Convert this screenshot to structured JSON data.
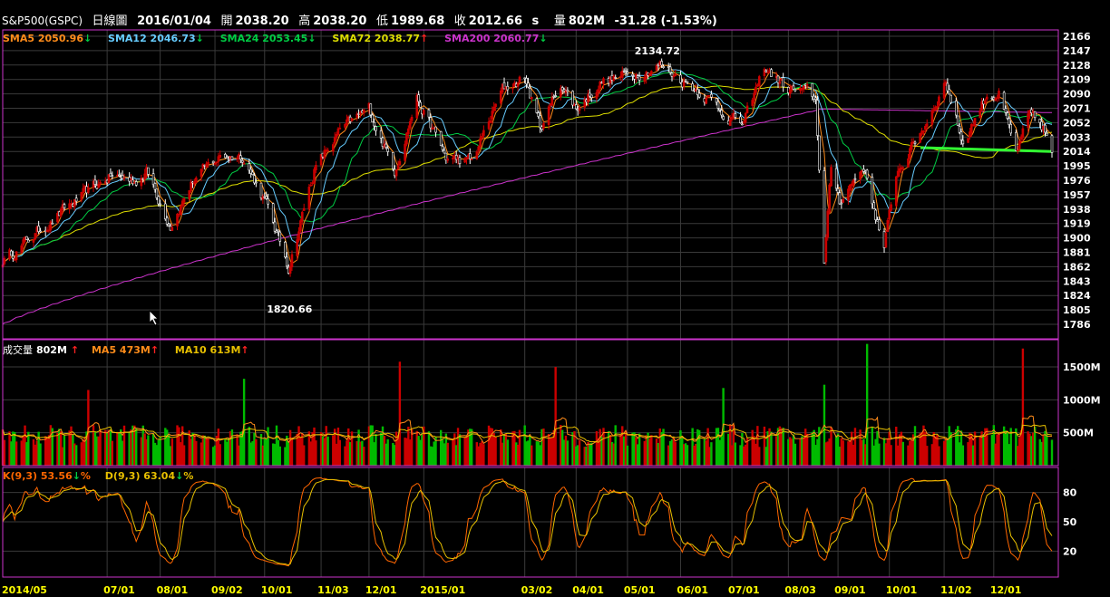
{
  "header": {
    "symbol": "S&P500(GSPC)",
    "period": "日線圖",
    "date": "2016/01/04",
    "open_label": "開",
    "open": "2038.20",
    "high_label": "高",
    "high": "2038.20",
    "low_label": "低",
    "low": "1989.68",
    "close_label": "收",
    "close": "2012.66",
    "close_suffix": "s",
    "volume_label": "量",
    "volume": "802M",
    "change": "-31.28 (-1.53%)"
  },
  "price_legend": {
    "sma5": "SMA5 2050.96",
    "sma12": "SMA12 2046.73",
    "sma24": "SMA24 2053.45",
    "sma72": "SMA72 2038.77",
    "sma200": "SMA200 2060.77",
    "arrow_down": "↓",
    "arrow_up": "↑"
  },
  "volume_legend": {
    "label": "成交量",
    "value": "802M",
    "ma5": "MA5 473M",
    "ma10": "MA10 613M",
    "arrow_up": "↑"
  },
  "kd_legend": {
    "k": "K(9,3) 53.56",
    "d": "D(9,3) 63.04",
    "pct": "%",
    "arrow_down": "↓"
  },
  "colors": {
    "up": "#cc0000",
    "down": "#00bb00",
    "sma5": "#ff8c1a",
    "sma12": "#66ccff",
    "sma24": "#00cc44",
    "sma72": "#dddd00",
    "sma200": "#cc33cc",
    "k_line": "#ff6600",
    "d_line": "#e8c000",
    "axis_text": "#ffffff",
    "date_text": "#ffff00"
  },
  "chart_data": [
    {
      "type": "candlestick",
      "title": "S&P500(GSPC) 日線圖",
      "x_range": [
        "2014/05",
        "2016/01/04"
      ],
      "ylim": [
        1786,
        2166
      ],
      "y_ticks": [
        1786,
        1805,
        1824,
        1843,
        1862,
        1881,
        1900,
        1919,
        1938,
        1957,
        1976,
        1995,
        2014,
        2033,
        2052,
        2071,
        2090,
        2109,
        2128,
        2147,
        2166
      ],
      "x_ticks": [
        "2014/05",
        "07/01",
        "08/01",
        "09/02",
        "10/01",
        "11/03",
        "12/01",
        "2015/01",
        "03/02",
        "04/01",
        "05/01",
        "06/01",
        "07/01",
        "08/03",
        "09/01",
        "10/01",
        "11/02",
        "12/01"
      ],
      "annotations": [
        "2134.72",
        "1820.66"
      ],
      "close_path": [
        {
          "x": "2014/05",
          "y": 1870
        },
        {
          "x": "2014/05/20",
          "y": 1905
        },
        {
          "x": "2014/06/05",
          "y": 1935
        },
        {
          "x": "2014/06/20",
          "y": 1960
        },
        {
          "x": "2014/07/03",
          "y": 1982
        },
        {
          "x": "2014/07/17",
          "y": 1975
        },
        {
          "x": "2014/07/24",
          "y": 1988
        },
        {
          "x": "2014/08/07",
          "y": 1918
        },
        {
          "x": "2014/08/20",
          "y": 1975
        },
        {
          "x": "2014/09/05",
          "y": 2007
        },
        {
          "x": "2014/09/18",
          "y": 2010
        },
        {
          "x": "2014/10/01",
          "y": 1950
        },
        {
          "x": "2014/10/15",
          "y": 1862
        },
        {
          "x": "2014/10/30",
          "y": 1990
        },
        {
          "x": "2014/11/14",
          "y": 2040
        },
        {
          "x": "2014/12/01",
          "y": 2070
        },
        {
          "x": "2014/12/16",
          "y": 1990
        },
        {
          "x": "2014/12/29",
          "y": 2085
        },
        {
          "x": "2015/01/15",
          "y": 2005
        },
        {
          "x": "2015/01/30",
          "y": 2000
        },
        {
          "x": "2015/02/17",
          "y": 2095
        },
        {
          "x": "2015/03/02",
          "y": 2112
        },
        {
          "x": "2015/03/11",
          "y": 2045
        },
        {
          "x": "2015/03/23",
          "y": 2105
        },
        {
          "x": "2015/04/01",
          "y": 2070
        },
        {
          "x": "2015/04/15",
          "y": 2105
        },
        {
          "x": "2015/05/01",
          "y": 2115
        },
        {
          "x": "2015/05/20",
          "y": 2128
        },
        {
          "x": "2015/06/01",
          "y": 2110
        },
        {
          "x": "2015/06/15",
          "y": 2090
        },
        {
          "x": "2015/06/29",
          "y": 2060
        },
        {
          "x": "2015/07/08",
          "y": 2050
        },
        {
          "x": "2015/07/20",
          "y": 2125
        },
        {
          "x": "2015/08/03",
          "y": 2095
        },
        {
          "x": "2015/08/14",
          "y": 2092
        },
        {
          "x": "2015/08/19",
          "y": 2080
        },
        {
          "x": "2015/08/24",
          "y": 1870
        },
        {
          "x": "2015/08/28",
          "y": 1990
        },
        {
          "x": "2015/09/02",
          "y": 1950
        },
        {
          "x": "2015/09/16",
          "y": 1995
        },
        {
          "x": "2015/09/28",
          "y": 1885
        },
        {
          "x": "2015/10/05",
          "y": 1985
        },
        {
          "x": "2015/10/22",
          "y": 2050
        },
        {
          "x": "2015/11/03",
          "y": 2108
        },
        {
          "x": "2015/11/13",
          "y": 2025
        },
        {
          "x": "2015/11/27",
          "y": 2090
        },
        {
          "x": "2015/12/04",
          "y": 2090
        },
        {
          "x": "2015/12/14",
          "y": 2010
        },
        {
          "x": "2015/12/22",
          "y": 2060
        },
        {
          "x": "2015/12/30",
          "y": 2045
        },
        {
          "x": "2016/01/04",
          "y": 2012.66
        }
      ],
      "series": [
        {
          "name": "SMA5",
          "last": 2050.96
        },
        {
          "name": "SMA12",
          "last": 2046.73
        },
        {
          "name": "SMA24",
          "last": 2053.45
        },
        {
          "name": "SMA72",
          "last": 2038.77
        },
        {
          "name": "SMA200",
          "last": 2060.77
        }
      ],
      "grid": true
    },
    {
      "type": "bar",
      "title": "成交量",
      "ylim": [
        0,
        1900
      ],
      "y_ticks": [
        "500M",
        "1000M",
        "1500M"
      ],
      "series": [
        {
          "name": "成交量",
          "last": "802M"
        },
        {
          "name": "MA5",
          "last": "473M"
        },
        {
          "name": "MA10",
          "last": "613M"
        }
      ],
      "spikes": [
        {
          "x": "2014/06/20",
          "value": 1150
        },
        {
          "x": "2014/09/19",
          "value": 1320
        },
        {
          "x": "2014/12/19",
          "value": 1580
        },
        {
          "x": "2015/03/20",
          "value": 1500
        },
        {
          "x": "2015/06/26",
          "value": 1180
        },
        {
          "x": "2015/08/24",
          "value": 1230
        },
        {
          "x": "2015/09/18",
          "value": 1850
        },
        {
          "x": "2015/12/18",
          "value": 1780
        }
      ],
      "typical_range": [
        280,
        620
      ],
      "grid": true
    },
    {
      "type": "line",
      "title": "KD(9,3)",
      "ylim": [
        0,
        100
      ],
      "y_ticks": [
        20,
        50,
        80
      ],
      "series": [
        {
          "name": "K(9,3)",
          "last": 53.56
        },
        {
          "name": "D(9,3)",
          "last": 63.04
        }
      ],
      "grid": true
    }
  ]
}
